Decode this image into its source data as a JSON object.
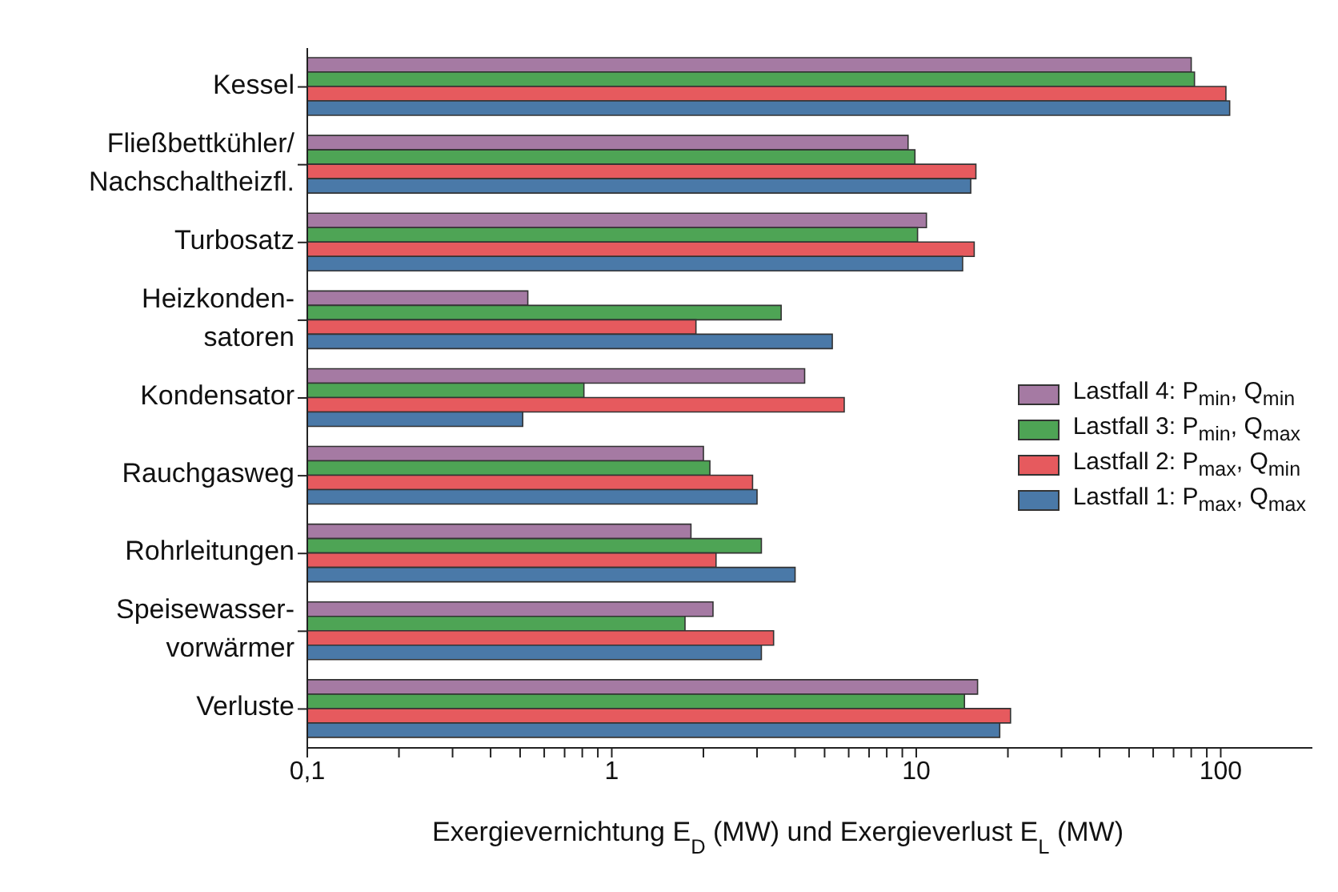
{
  "chart_data": {
    "type": "bar",
    "orientation": "horizontal",
    "xlabel": "Exergievernichtung E$_{D}$ (MW) und Exergieverlust E$_{L}$ (MW)",
    "categories": [
      "Kessel",
      "Fließbettkühler/\nNachschaltheizfl.",
      "Turbosatz",
      "Heizkonden-\nsatoren",
      "Kondensator",
      "Rauchgasweg",
      "Rohrleitungen",
      "Speisewasser-\nvorwärmer",
      "Verluste"
    ],
    "series": [
      {
        "name": "Lastfall 4: P$_{min}$, Q$_{min}$",
        "color": "#a57aa3",
        "values": [
          80,
          9.4,
          10.8,
          0.53,
          4.3,
          2.0,
          1.82,
          2.15,
          15.9
        ]
      },
      {
        "name": "Lastfall 3: P$_{min}$, Q$_{max}$",
        "color": "#4ea455",
        "values": [
          82,
          9.9,
          10.1,
          3.6,
          0.81,
          2.1,
          3.1,
          1.74,
          14.4
        ]
      },
      {
        "name": "Lastfall 2: P$_{max}$, Q$_{min}$",
        "color": "#e65a5e",
        "values": [
          104,
          15.7,
          15.5,
          1.89,
          5.8,
          2.9,
          2.2,
          3.4,
          20.4
        ]
      },
      {
        "name": "Lastfall 1: P$_{max}$, Q$_{max}$",
        "color": "#4a79a8",
        "values": [
          107,
          15.1,
          14.2,
          5.3,
          0.51,
          3.0,
          4.0,
          3.1,
          18.8
        ]
      }
    ],
    "log": "x",
    "xlim": [
      0.1,
      200
    ],
    "xticks": [
      {
        "value": 0.1,
        "label": "0,1"
      },
      {
        "value": 0.2,
        "label": null
      },
      {
        "value": 0.3,
        "label": null
      },
      {
        "value": 0.4,
        "label": null
      },
      {
        "value": 0.5,
        "label": null
      },
      {
        "value": 0.6,
        "label": null
      },
      {
        "value": 0.7,
        "label": null
      },
      {
        "value": 0.8,
        "label": null
      },
      {
        "value": 0.9,
        "label": null
      },
      1,
      {
        "value": 2,
        "label": null
      },
      {
        "value": 3,
        "label": null
      },
      {
        "value": 4,
        "label": null
      },
      {
        "value": 5,
        "label": null
      },
      {
        "value": 6,
        "label": null
      },
      {
        "value": 7,
        "label": null
      },
      {
        "value": 8,
        "label": null
      },
      {
        "value": 9,
        "label": null
      },
      10,
      {
        "value": 20,
        "label": null
      },
      {
        "value": 30,
        "label": null
      },
      {
        "value": 40,
        "label": null
      },
      {
        "value": 50,
        "label": null
      },
      {
        "value": 60,
        "label": null
      },
      {
        "value": 70,
        "label": null
      },
      {
        "value": 80,
        "label": null
      },
      {
        "value": 90,
        "label": null
      },
      100
    ],
    "grid": false,
    "legend": "right"
  }
}
